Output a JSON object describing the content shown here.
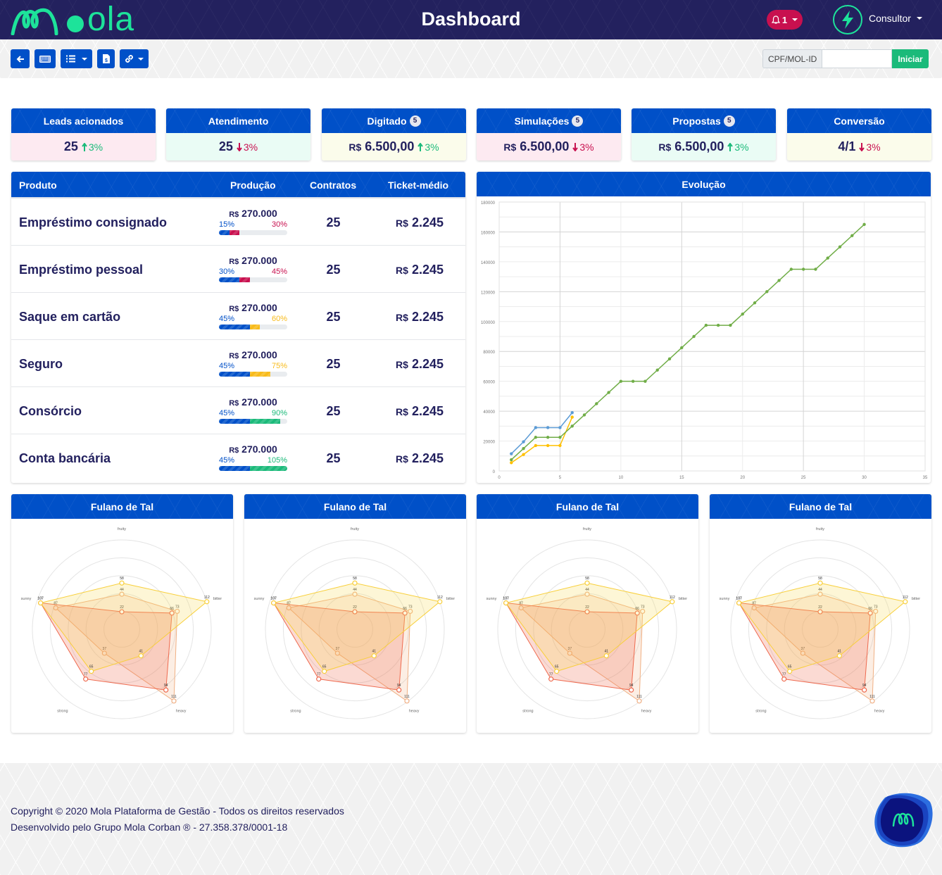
{
  "header": {
    "logo_text": "ola",
    "title": "Dashboard",
    "notifications": {
      "count": "1",
      "icon": "bell-icon"
    },
    "user": {
      "name": "Consultor",
      "avatar_icon": "lightning-bolt-icon"
    }
  },
  "toolbar": {
    "buttons": [
      {
        "name": "back",
        "icon": "arrow-left-icon"
      },
      {
        "name": "keyboard",
        "icon": "keyboard-icon"
      },
      {
        "name": "list-menu",
        "icon": "list-icon",
        "dropdown": true
      },
      {
        "name": "invoice",
        "icon": "file-invoice-dollar-icon"
      },
      {
        "name": "links-menu",
        "icon": "link-icon",
        "dropdown": true
      }
    ],
    "search": {
      "label": "CPF/MOL-ID",
      "value": "",
      "placeholder": "",
      "button": "Iniciar"
    }
  },
  "kpis": [
    {
      "title": "Leads acionados",
      "badge": null,
      "currency": "",
      "value": "25",
      "trend": "up",
      "change": "3%",
      "bg": "#fdeaf1"
    },
    {
      "title": "Atendimento",
      "badge": null,
      "currency": "",
      "value": "25",
      "trend": "down",
      "change": "3%",
      "bg": "#eafcf5"
    },
    {
      "title": "Digitado",
      "badge": "5",
      "currency": "R$",
      "value": "6.500,00",
      "trend": "up",
      "change": "3%",
      "bg": "#fbfceb"
    },
    {
      "title": "Simulações",
      "badge": "5",
      "currency": "R$",
      "value": "6.500,00",
      "trend": "down",
      "change": "3%",
      "bg": "#fdeaf1"
    },
    {
      "title": "Propostas",
      "badge": "5",
      "currency": "R$",
      "value": "6.500,00",
      "trend": "up",
      "change": "3%",
      "bg": "#eafcf5"
    },
    {
      "title": "Conversão",
      "badge": null,
      "currency": "",
      "value": "4/1",
      "trend": "down",
      "change": "3%",
      "bg": "#fbfceb"
    }
  ],
  "products": {
    "columns": [
      "Produto",
      "Produção",
      "Contratos",
      "Ticket-médio"
    ],
    "rows": [
      {
        "name": "Empréstimo consignado",
        "currency": "R$",
        "production": "270.000",
        "pct_base": "15%",
        "pct_goal": "30%",
        "base": 15,
        "goal": 30,
        "goal_color": "#c8104f",
        "contracts": "25",
        "ticket": "2.245"
      },
      {
        "name": "Empréstimo pessoal",
        "currency": "R$",
        "production": "270.000",
        "pct_base": "30%",
        "pct_goal": "45%",
        "base": 30,
        "goal": 45,
        "goal_color": "#c8104f",
        "contracts": "25",
        "ticket": "2.245"
      },
      {
        "name": "Saque em cartão",
        "currency": "R$",
        "production": "270.000",
        "pct_base": "45%",
        "pct_goal": "60%",
        "base": 45,
        "goal": 60,
        "goal_color": "#f8bb1a",
        "contracts": "25",
        "ticket": "2.245"
      },
      {
        "name": "Seguro",
        "currency": "R$",
        "production": "270.000",
        "pct_base": "45%",
        "pct_goal": "75%",
        "base": 45,
        "goal": 75,
        "goal_color": "#f8bb1a",
        "contracts": "25",
        "ticket": "2.245"
      },
      {
        "name": "Consórcio",
        "currency": "R$",
        "production": "270.000",
        "pct_base": "45%",
        "pct_goal": "90%",
        "base": 45,
        "goal": 90,
        "goal_color": "#1bba7a",
        "contracts": "25",
        "ticket": "2.245"
      },
      {
        "name": "Conta bancária",
        "currency": "R$",
        "production": "270.000",
        "pct_base": "45%",
        "pct_goal": "105%",
        "base": 45,
        "goal": 105,
        "goal_color": "#1bba7a",
        "contracts": "25",
        "ticket": "2.245"
      }
    ],
    "base_color": "#0050c8"
  },
  "evolution": {
    "title": "Evolução"
  },
  "radar_cards": [
    {
      "title": "Fulano de Tal"
    },
    {
      "title": "Fulano de Tal"
    },
    {
      "title": "Fulano de Tal"
    },
    {
      "title": "Fulano de Tal"
    }
  ],
  "chart_data": [
    {
      "type": "line",
      "title": "Evolução",
      "xlabel": "",
      "ylabel": "",
      "xlim": [
        0,
        35
      ],
      "ylim": [
        0,
        180000
      ],
      "xticks": [
        0,
        5,
        10,
        15,
        20,
        25,
        30,
        35
      ],
      "yticks": [
        0,
        20000,
        40000,
        60000,
        80000,
        100000,
        120000,
        140000,
        160000,
        180000
      ],
      "grid": true,
      "legend": "none",
      "series": [
        {
          "name": "blue",
          "color": "#5b9bd5",
          "x": [
            1,
            2,
            3,
            4,
            5,
            6
          ],
          "values": [
            11500,
            19500,
            29000,
            29000,
            29000,
            39000
          ]
        },
        {
          "name": "yellow",
          "color": "#ffc000",
          "x": [
            1,
            2,
            3,
            4,
            5,
            6
          ],
          "values": [
            5500,
            11000,
            17000,
            17000,
            17000,
            36000
          ]
        },
        {
          "name": "green",
          "color": "#70ad47",
          "x": [
            1,
            2,
            3,
            4,
            5,
            6,
            7,
            8,
            9,
            10,
            11,
            12,
            13,
            14,
            15,
            16,
            17,
            18,
            19,
            20,
            21,
            22,
            23,
            24,
            25,
            26,
            27,
            28,
            29,
            30
          ],
          "values": [
            7500,
            15000,
            22500,
            22500,
            22500,
            30000,
            37500,
            45000,
            52500,
            60000,
            60000,
            60000,
            67500,
            75000,
            82500,
            90000,
            97500,
            97500,
            97500,
            105000,
            112500,
            120000,
            127500,
            135000,
            135000,
            135000,
            142500,
            150000,
            157500,
            165000
          ]
        }
      ]
    },
    {
      "type": "radar",
      "title": "Fulano de Tal",
      "axes": [
        "fruity",
        "bitter",
        "heavy",
        "strong",
        "sunny"
      ],
      "rmax": 112,
      "rings": 5,
      "series": [
        {
          "name": "peach",
          "stroke": "#f0b084",
          "fill": "rgba(240,176,132,0.22)",
          "values": [
            44,
            73,
            111,
            37,
            87
          ]
        },
        {
          "name": "red",
          "stroke": "#ef6a4f",
          "fill": "rgba(239,106,79,0.25)",
          "values": [
            22,
            66,
            94,
            77,
            107
          ]
        },
        {
          "name": "yellow",
          "stroke": "#f8cf3a",
          "fill": "rgba(248,220,90,0.25)",
          "values": [
            58,
            112,
            41,
            65,
            107
          ]
        }
      ]
    }
  ],
  "footer": {
    "line1": "Copyright © 2020 Mola Plataforma de Gestão - Todos os direitos reservados",
    "line2": "Desenvolvido pelo Grupo Mola Corban ® - 27.358.378/0001-18"
  }
}
